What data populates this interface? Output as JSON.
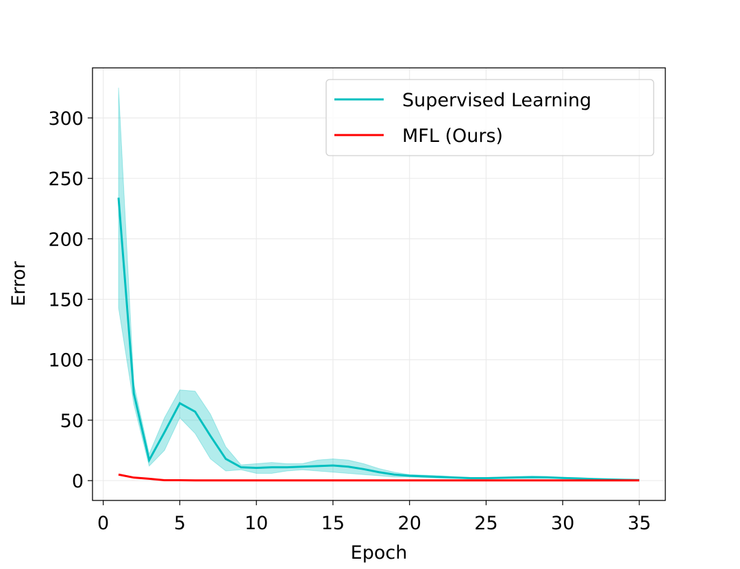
{
  "chart_data": {
    "type": "line",
    "xlabel": "Epoch",
    "ylabel": "Error",
    "x": [
      1,
      2,
      3,
      4,
      5,
      6,
      7,
      8,
      9,
      10,
      11,
      12,
      13,
      14,
      15,
      16,
      17,
      18,
      19,
      20,
      21,
      22,
      23,
      24,
      25,
      26,
      27,
      28,
      29,
      30,
      31,
      32,
      33,
      34,
      35
    ],
    "series": [
      {
        "name": "Supervised Learning",
        "color": "#00bfbf",
        "values": [
          234,
          72,
          17,
          40,
          64,
          57,
          37,
          18,
          11,
          10.5,
          11,
          11,
          11.5,
          12,
          12.5,
          11.5,
          9.5,
          7,
          5,
          4,
          3.5,
          3,
          2.5,
          2,
          2,
          2.3,
          2.6,
          2.8,
          2.7,
          2.2,
          1.8,
          1.3,
          1,
          0.7,
          0.5
        ],
        "upper": [
          325,
          80,
          22,
          52,
          75,
          74,
          55,
          28,
          13,
          14,
          15,
          14,
          14,
          17,
          18,
          17,
          14,
          10,
          7,
          5,
          4.5,
          4,
          3.2,
          2.6,
          2.5,
          3,
          3.5,
          3.8,
          3.5,
          2.8,
          2.2,
          1.6,
          1.2,
          0.9,
          0.6
        ],
        "lower": [
          143,
          63,
          12,
          25,
          52,
          39,
          18,
          8,
          9,
          6,
          6,
          8,
          9,
          8,
          7,
          6,
          5,
          4,
          3,
          3,
          2.5,
          2,
          1.8,
          1.5,
          1.5,
          1.7,
          1.8,
          1.9,
          1.9,
          1.6,
          1.4,
          1,
          0.8,
          0.5,
          0.4
        ]
      },
      {
        "name": "MFL (Ours)",
        "color": "#ff0000",
        "values": [
          5,
          2.5,
          1.5,
          0.3,
          0.3,
          0.2,
          0.2,
          0.2,
          0.2,
          0.2,
          0.2,
          0.2,
          0.2,
          0.2,
          0.2,
          0.2,
          0.2,
          0.2,
          0.2,
          0.2,
          0.2,
          0.2,
          0.2,
          0.2,
          0.2,
          0.2,
          0.2,
          0.2,
          0.2,
          0.2,
          0.2,
          0.2,
          0.2,
          0.2,
          0.2
        ]
      }
    ],
    "xlim": [
      -0.7,
      36.7
    ],
    "ylim": [
      -16.4,
      341.4
    ],
    "xticks": [
      0,
      5,
      10,
      15,
      20,
      25,
      30,
      35
    ],
    "yticks": [
      0,
      50,
      100,
      150,
      200,
      250,
      300
    ],
    "grid": true,
    "legend": "upper right"
  }
}
